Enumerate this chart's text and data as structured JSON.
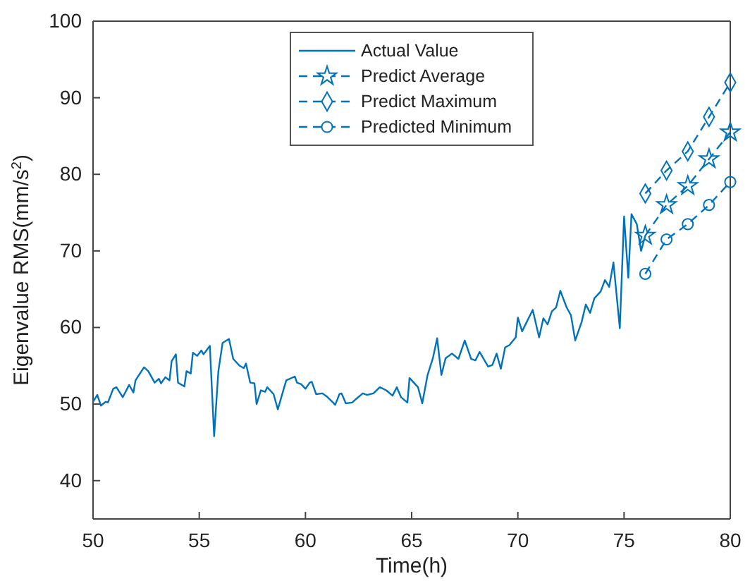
{
  "chart_data": {
    "type": "line",
    "xlabel": "Time(h)",
    "ylabel": "Eigenvalue RMS(mm/s$^{2}$)",
    "xlim": [
      50,
      80
    ],
    "xticks": [
      50,
      55,
      60,
      65,
      70,
      75,
      80
    ],
    "ylim": [
      35,
      100
    ],
    "yticks": [
      40,
      50,
      60,
      70,
      80,
      90,
      100
    ],
    "grid": false,
    "legend": "top",
    "series": [
      {
        "name": "Actual Value",
        "color": "#0072bd",
        "marker": "none",
        "line_style": "solid",
        "x": [
          50,
          50.2,
          50.37,
          50.6,
          50.7,
          50.95,
          51.1,
          51.4,
          51.7,
          51.9,
          52.0,
          52.4,
          52.6,
          52.9,
          53.1,
          53.2,
          53.4,
          53.6,
          53.7,
          53.9,
          54.0,
          54.3,
          54.4,
          54.6,
          54.7,
          54.9,
          55.1,
          55.2,
          55.5,
          55.7,
          55.9,
          56.1,
          56.4,
          56.6,
          56.9,
          57.1,
          57.2,
          57.4,
          57.6,
          57.7,
          57.9,
          58.1,
          58.2,
          58.5,
          58.7,
          59.0,
          59.1,
          59.5,
          59.6,
          59.8,
          60.0,
          60.2,
          60.3,
          60.5,
          60.8,
          61.0,
          61.3,
          61.4,
          61.6,
          61.7,
          61.9,
          62.2,
          62.4,
          62.7,
          62.9,
          63.2,
          63.5,
          63.8,
          64.1,
          64.3,
          64.5,
          64.8,
          64.9,
          65.3,
          65.5,
          65.75,
          66.0,
          66.2,
          66.4,
          66.6,
          66.9,
          67.2,
          67.5,
          67.8,
          68.0,
          68.2,
          68.6,
          68.8,
          69.0,
          69.2,
          69.4,
          69.6,
          69.9,
          70.0,
          70.2,
          70.7,
          71.0,
          71.2,
          71.4,
          71.6,
          71.8,
          72.0,
          72.3,
          72.5,
          72.7,
          73.0,
          73.2,
          73.4,
          73.6,
          73.9,
          74.1,
          74.3,
          74.5,
          74.8,
          75.0,
          75.2,
          75.35,
          75.6,
          75.8,
          76.0
        ],
        "values": [
          50.3,
          51.2,
          49.8,
          50.3,
          50.2,
          52,
          52.2,
          50.9,
          52.5,
          51.5,
          53.1,
          54.8,
          54.3,
          52.8,
          53.3,
          52.7,
          53.5,
          53.1,
          55.6,
          56.5,
          52.8,
          52.3,
          54.3,
          54.0,
          56.7,
          56.3,
          57.0,
          56.5,
          57.6,
          45.8,
          54.3,
          58.0,
          58.5,
          55.9,
          55.0,
          54.7,
          55.3,
          52.8,
          52.7,
          50.0,
          51.8,
          51.6,
          52.2,
          51.3,
          49.3,
          52.2,
          53.1,
          53.6,
          52.8,
          52.6,
          52.0,
          52.8,
          52.9,
          51.3,
          51.4,
          51.0,
          50.2,
          49.9,
          51.3,
          51.4,
          50.1,
          50.2,
          50.7,
          51.4,
          51.2,
          51.4,
          52.2,
          51.8,
          51.1,
          52.2,
          50.9,
          50.2,
          53.4,
          52.2,
          50.1,
          53.8,
          56.0,
          58.6,
          53.8,
          56.0,
          56.6,
          55.9,
          58.3,
          55.9,
          55.7,
          56.8,
          54.9,
          55.1,
          56.6,
          54.6,
          57.4,
          57.7,
          58.7,
          61.3,
          59.5,
          62.3,
          58.7,
          61.2,
          60.4,
          62.1,
          62.6,
          64.8,
          62.6,
          61.6,
          58.3,
          60.7,
          63.0,
          61.9,
          63.8,
          64.7,
          66.2,
          65.3,
          68.5,
          59.9,
          74.5,
          66.5,
          74.8,
          73.5,
          70.0,
          72.0
        ]
      },
      {
        "name": "Predict Average",
        "color": "#0072bd",
        "marker": "star",
        "line_style": "dashed",
        "x": [
          76,
          77,
          78,
          79,
          80
        ],
        "values": [
          72,
          76,
          78.5,
          82,
          85.5
        ]
      },
      {
        "name": "Predict Maximum",
        "color": "#0072bd",
        "marker": "diamond",
        "line_style": "dashed",
        "x": [
          76,
          77,
          78,
          79,
          80
        ],
        "values": [
          77.5,
          80.5,
          83,
          87.5,
          92
        ]
      },
      {
        "name": "Predicted Minimum",
        "color": "#0072bd",
        "marker": "circle",
        "line_style": "dashed",
        "x": [
          76,
          77,
          78,
          79,
          80
        ],
        "values": [
          67,
          71.5,
          73.5,
          76,
          79
        ]
      }
    ]
  }
}
